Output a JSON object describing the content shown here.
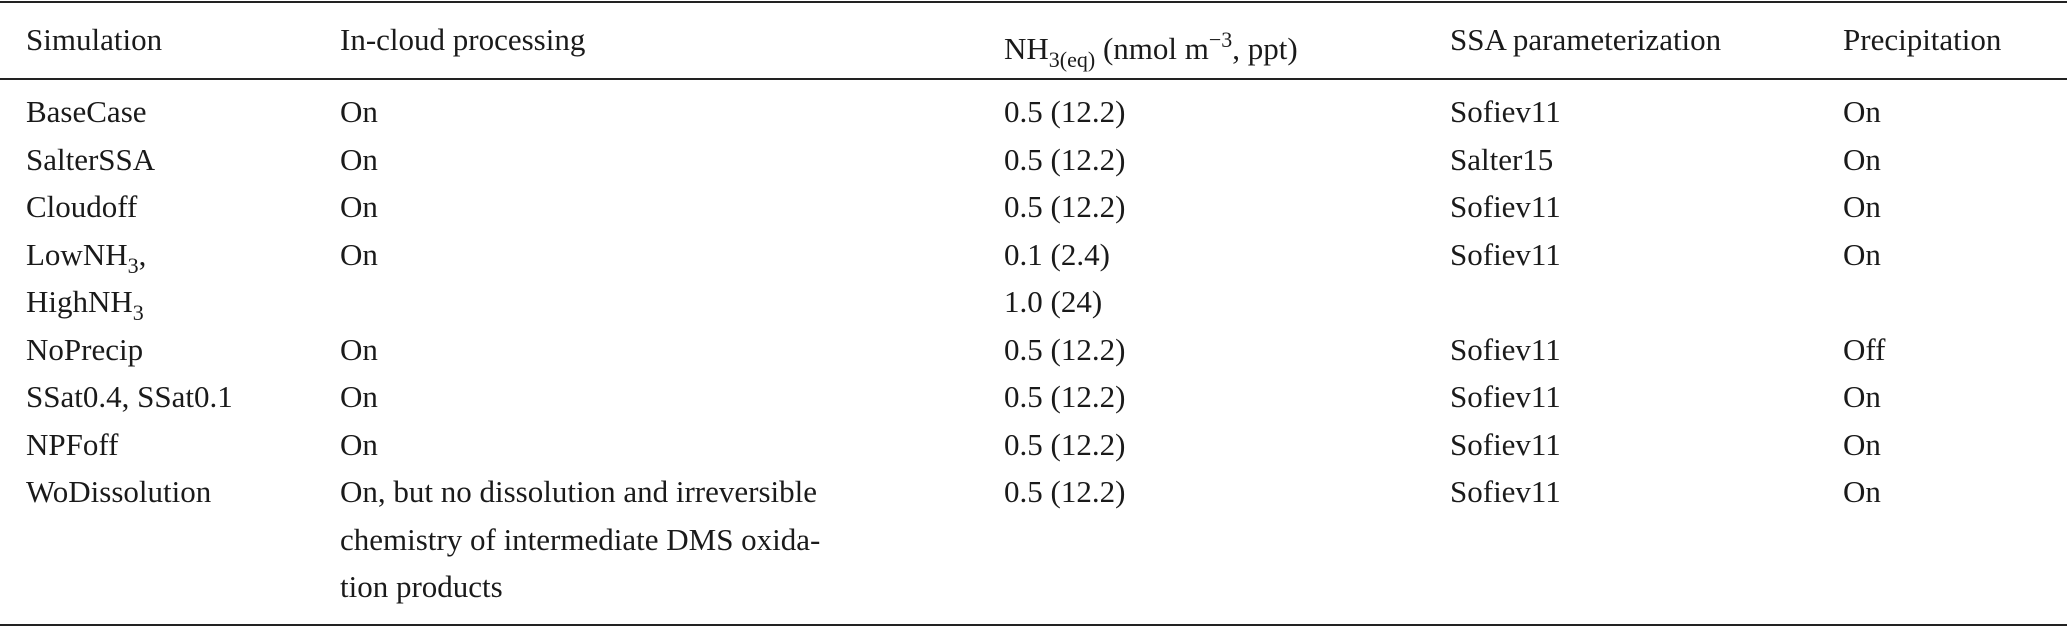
{
  "table": {
    "header": [
      [
        [
          "Simulation"
        ]
      ],
      [
        [
          "In-cloud processing"
        ]
      ],
      [
        [
          "NH",
          {
            "sub": "3(eq)"
          },
          " (nmol m",
          {
            "sup": "−3"
          },
          ", ppt)"
        ]
      ],
      [
        [
          "SSA parameterization"
        ]
      ],
      [
        [
          "Precipitation"
        ]
      ]
    ],
    "rows": [
      [
        [
          [
            "BaseCase"
          ]
        ],
        [
          [
            "On"
          ]
        ],
        [
          [
            "0.5 (12.2)"
          ]
        ],
        [
          [
            "Sofiev11"
          ]
        ],
        [
          [
            "On"
          ]
        ]
      ],
      [
        [
          [
            "SalterSSA"
          ]
        ],
        [
          [
            "On"
          ]
        ],
        [
          [
            "0.5 (12.2)"
          ]
        ],
        [
          [
            "Salter15"
          ]
        ],
        [
          [
            "On"
          ]
        ]
      ],
      [
        [
          [
            "Cloudoff"
          ]
        ],
        [
          [
            "On"
          ]
        ],
        [
          [
            "0.5 (12.2)"
          ]
        ],
        [
          [
            "Sofiev11"
          ]
        ],
        [
          [
            "On"
          ]
        ]
      ],
      [
        [
          [
            "LowNH",
            {
              "sub": "3"
            },
            ","
          ],
          [
            "HighNH",
            {
              "sub": "3"
            }
          ]
        ],
        [
          [
            "On"
          ]
        ],
        [
          [
            "0.1 (2.4)"
          ],
          [
            "1.0 (24)"
          ]
        ],
        [
          [
            "Sofiev11"
          ]
        ],
        [
          [
            "On"
          ]
        ]
      ],
      [
        [
          [
            "NoPrecip"
          ]
        ],
        [
          [
            "On"
          ]
        ],
        [
          [
            "0.5 (12.2)"
          ]
        ],
        [
          [
            "Sofiev11"
          ]
        ],
        [
          [
            "Off"
          ]
        ]
      ],
      [
        [
          [
            "SSat0.4, SSat0.1"
          ]
        ],
        [
          [
            "On"
          ]
        ],
        [
          [
            "0.5 (12.2)"
          ]
        ],
        [
          [
            "Sofiev11"
          ]
        ],
        [
          [
            "On"
          ]
        ]
      ],
      [
        [
          [
            "NPFoff"
          ]
        ],
        [
          [
            "On"
          ]
        ],
        [
          [
            "0.5 (12.2)"
          ]
        ],
        [
          [
            "Sofiev11"
          ]
        ],
        [
          [
            "On"
          ]
        ]
      ],
      [
        [
          [
            "WoDissolution"
          ]
        ],
        [
          [
            "On, but no dissolution and irreversible"
          ],
          [
            "chemistry of intermediate DMS oxida-"
          ],
          [
            "tion products"
          ]
        ],
        [
          [
            "0.5 (12.2)"
          ]
        ],
        [
          [
            "Sofiev11"
          ]
        ],
        [
          [
            "On"
          ]
        ]
      ]
    ]
  }
}
